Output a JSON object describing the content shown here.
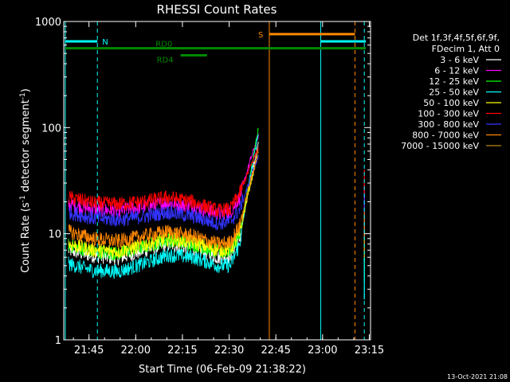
{
  "chart_data": {
    "type": "line",
    "title": "RHESSI Count Rates",
    "xlabel": "Start Time (06-Feb-09 21:38:22)",
    "ylabel_parts": [
      "Count Rate (s",
      "-1",
      " detector segment",
      "-1",
      ")"
    ],
    "y_scale": "log",
    "ylim": [
      1,
      1000
    ],
    "xlim_minutes": [
      -1.5,
      97.0
    ],
    "x_ticks": [
      {
        "label": "21:45",
        "minute": 6.6
      },
      {
        "label": "22:00",
        "minute": 21.6
      },
      {
        "label": "22:15",
        "minute": 36.6
      },
      {
        "label": "22:30",
        "minute": 51.6
      },
      {
        "label": "22:45",
        "minute": 66.6
      },
      {
        "label": "23:00",
        "minute": 81.6
      },
      {
        "label": "23:15",
        "minute": 96.6
      }
    ],
    "y_ticks": [
      {
        "label": "1",
        "value": 1
      },
      {
        "label": "10",
        "value": 10
      },
      {
        "label": "100",
        "value": 100
      },
      {
        "label": "1000",
        "value": 1000
      }
    ],
    "legend_header": [
      "Det 1f,3f,4f,5f,6f,9f,",
      "FDecim 1, Att 0"
    ],
    "legend_placement": "right",
    "series": [
      {
        "name": "3 - 6 keV",
        "color": "#ffffff",
        "x": [
          0,
          8,
          16,
          24,
          32,
          40,
          48,
          52,
          55,
          58,
          61
        ],
        "y": [
          7.0,
          6.2,
          5.9,
          6.9,
          8.0,
          7.3,
          6.0,
          6.2,
          9.0,
          28.0,
          70.0
        ]
      },
      {
        "name": "6 - 12 keV",
        "color": "#ff00ff",
        "x": [
          0,
          8,
          16,
          24,
          32,
          40,
          48,
          52,
          55,
          58,
          61
        ],
        "y": [
          19.0,
          17.0,
          16.5,
          18.0,
          19.5,
          18.0,
          15.5,
          16.0,
          22.0,
          45.0,
          85.0
        ]
      },
      {
        "name": "12 - 25 keV",
        "color": "#00ff00",
        "x": [
          0,
          8,
          16,
          24,
          32,
          40,
          48,
          52,
          55,
          58,
          61
        ],
        "y": [
          7.8,
          6.8,
          6.5,
          7.5,
          8.8,
          8.0,
          6.7,
          6.9,
          10.0,
          30.0,
          100.0
        ]
      },
      {
        "name": "25 - 50 keV",
        "color": "#00ffff",
        "x": [
          0,
          8,
          16,
          24,
          32,
          40,
          48,
          52,
          55,
          58,
          61
        ],
        "y": [
          5.2,
          4.5,
          4.4,
          5.2,
          6.3,
          6.0,
          5.0,
          5.0,
          8.0,
          30.0,
          90.0
        ]
      },
      {
        "name": "50 - 100 keV",
        "color": "#ffff00",
        "x": [
          0,
          8,
          16,
          24,
          32,
          40,
          48,
          52,
          55,
          58,
          61
        ],
        "y": [
          8.0,
          7.0,
          6.8,
          7.8,
          9.0,
          8.3,
          7.0,
          7.2,
          10.0,
          26.0,
          60.0
        ]
      },
      {
        "name": "100 - 300 keV",
        "color": "#ff0000",
        "x": [
          0,
          8,
          16,
          24,
          32,
          40,
          48,
          52,
          55,
          58,
          61
        ],
        "y": [
          22.0,
          19.5,
          19.0,
          20.0,
          22.0,
          20.0,
          16.5,
          17.0,
          24.0,
          40.0,
          65.0
        ]
      },
      {
        "name": "300 - 800 keV",
        "color": "#3333ff",
        "x": [
          0,
          8,
          16,
          24,
          32,
          40,
          48,
          52,
          55,
          58,
          61
        ],
        "y": [
          16.0,
          14.0,
          13.5,
          14.5,
          16.0,
          14.5,
          12.5,
          13.0,
          17.0,
          30.0,
          55.0
        ]
      },
      {
        "name": "800 - 7000 keV",
        "color": "#ff8800",
        "x": [
          0,
          8,
          16,
          24,
          32,
          40,
          48,
          52,
          55,
          58,
          61
        ],
        "y": [
          10.5,
          9.0,
          8.5,
          9.5,
          10.5,
          9.5,
          8.0,
          8.3,
          12.0,
          28.0,
          60.0
        ]
      },
      {
        "name": "7000 - 15000 keV",
        "color": "#b8860b",
        "x": [],
        "y": []
      }
    ],
    "vertical_lines": [
      {
        "minute": -1.0,
        "color": "#00ffff",
        "style": "solid"
      },
      {
        "minute": 9.3,
        "color": "#00ffff",
        "style": "dashed"
      },
      {
        "minute": 64.5,
        "color": "#ff8800",
        "style": "solid"
      },
      {
        "minute": 81.0,
        "color": "#00ffff",
        "style": "solid"
      },
      {
        "minute": 92.0,
        "color": "#ff8800",
        "style": "dashed"
      },
      {
        "minute": 95.0,
        "color": "#00ffff",
        "style": "dashed"
      }
    ],
    "flag_bars": [
      {
        "label": "N",
        "color": "#00ffff",
        "x_start": -1.0,
        "x_end": 9.3,
        "y_value": 650
      },
      {
        "label": "",
        "color": "#00ffff",
        "x_start": 81.0,
        "x_end": 95.5,
        "y_value": 650
      },
      {
        "label": "S",
        "color": "#ff8800",
        "x_start": 64.5,
        "x_end": 92.0,
        "y_value": 760
      },
      {
        "label": "RD0",
        "color": "#008800",
        "x_start": -1.0,
        "x_end": 95.5,
        "y_value": 560
      },
      {
        "label": "RD4",
        "color": "#008800",
        "x_start": 36.0,
        "x_end": 44.5,
        "y_value": 480
      }
    ],
    "burst_segment": {
      "minute": 95.0,
      "values": {
        "3 - 6 keV": 9,
        "6 - 12 keV": 18,
        "12 - 25 keV": 6,
        "25 - 50 keV": 4,
        "100 - 300 keV": 25,
        "300 - 800 keV": 15,
        "800 - 7000 keV": 10
      }
    }
  },
  "footer": {
    "timestamp": "13-Oct-2021 21:08"
  }
}
